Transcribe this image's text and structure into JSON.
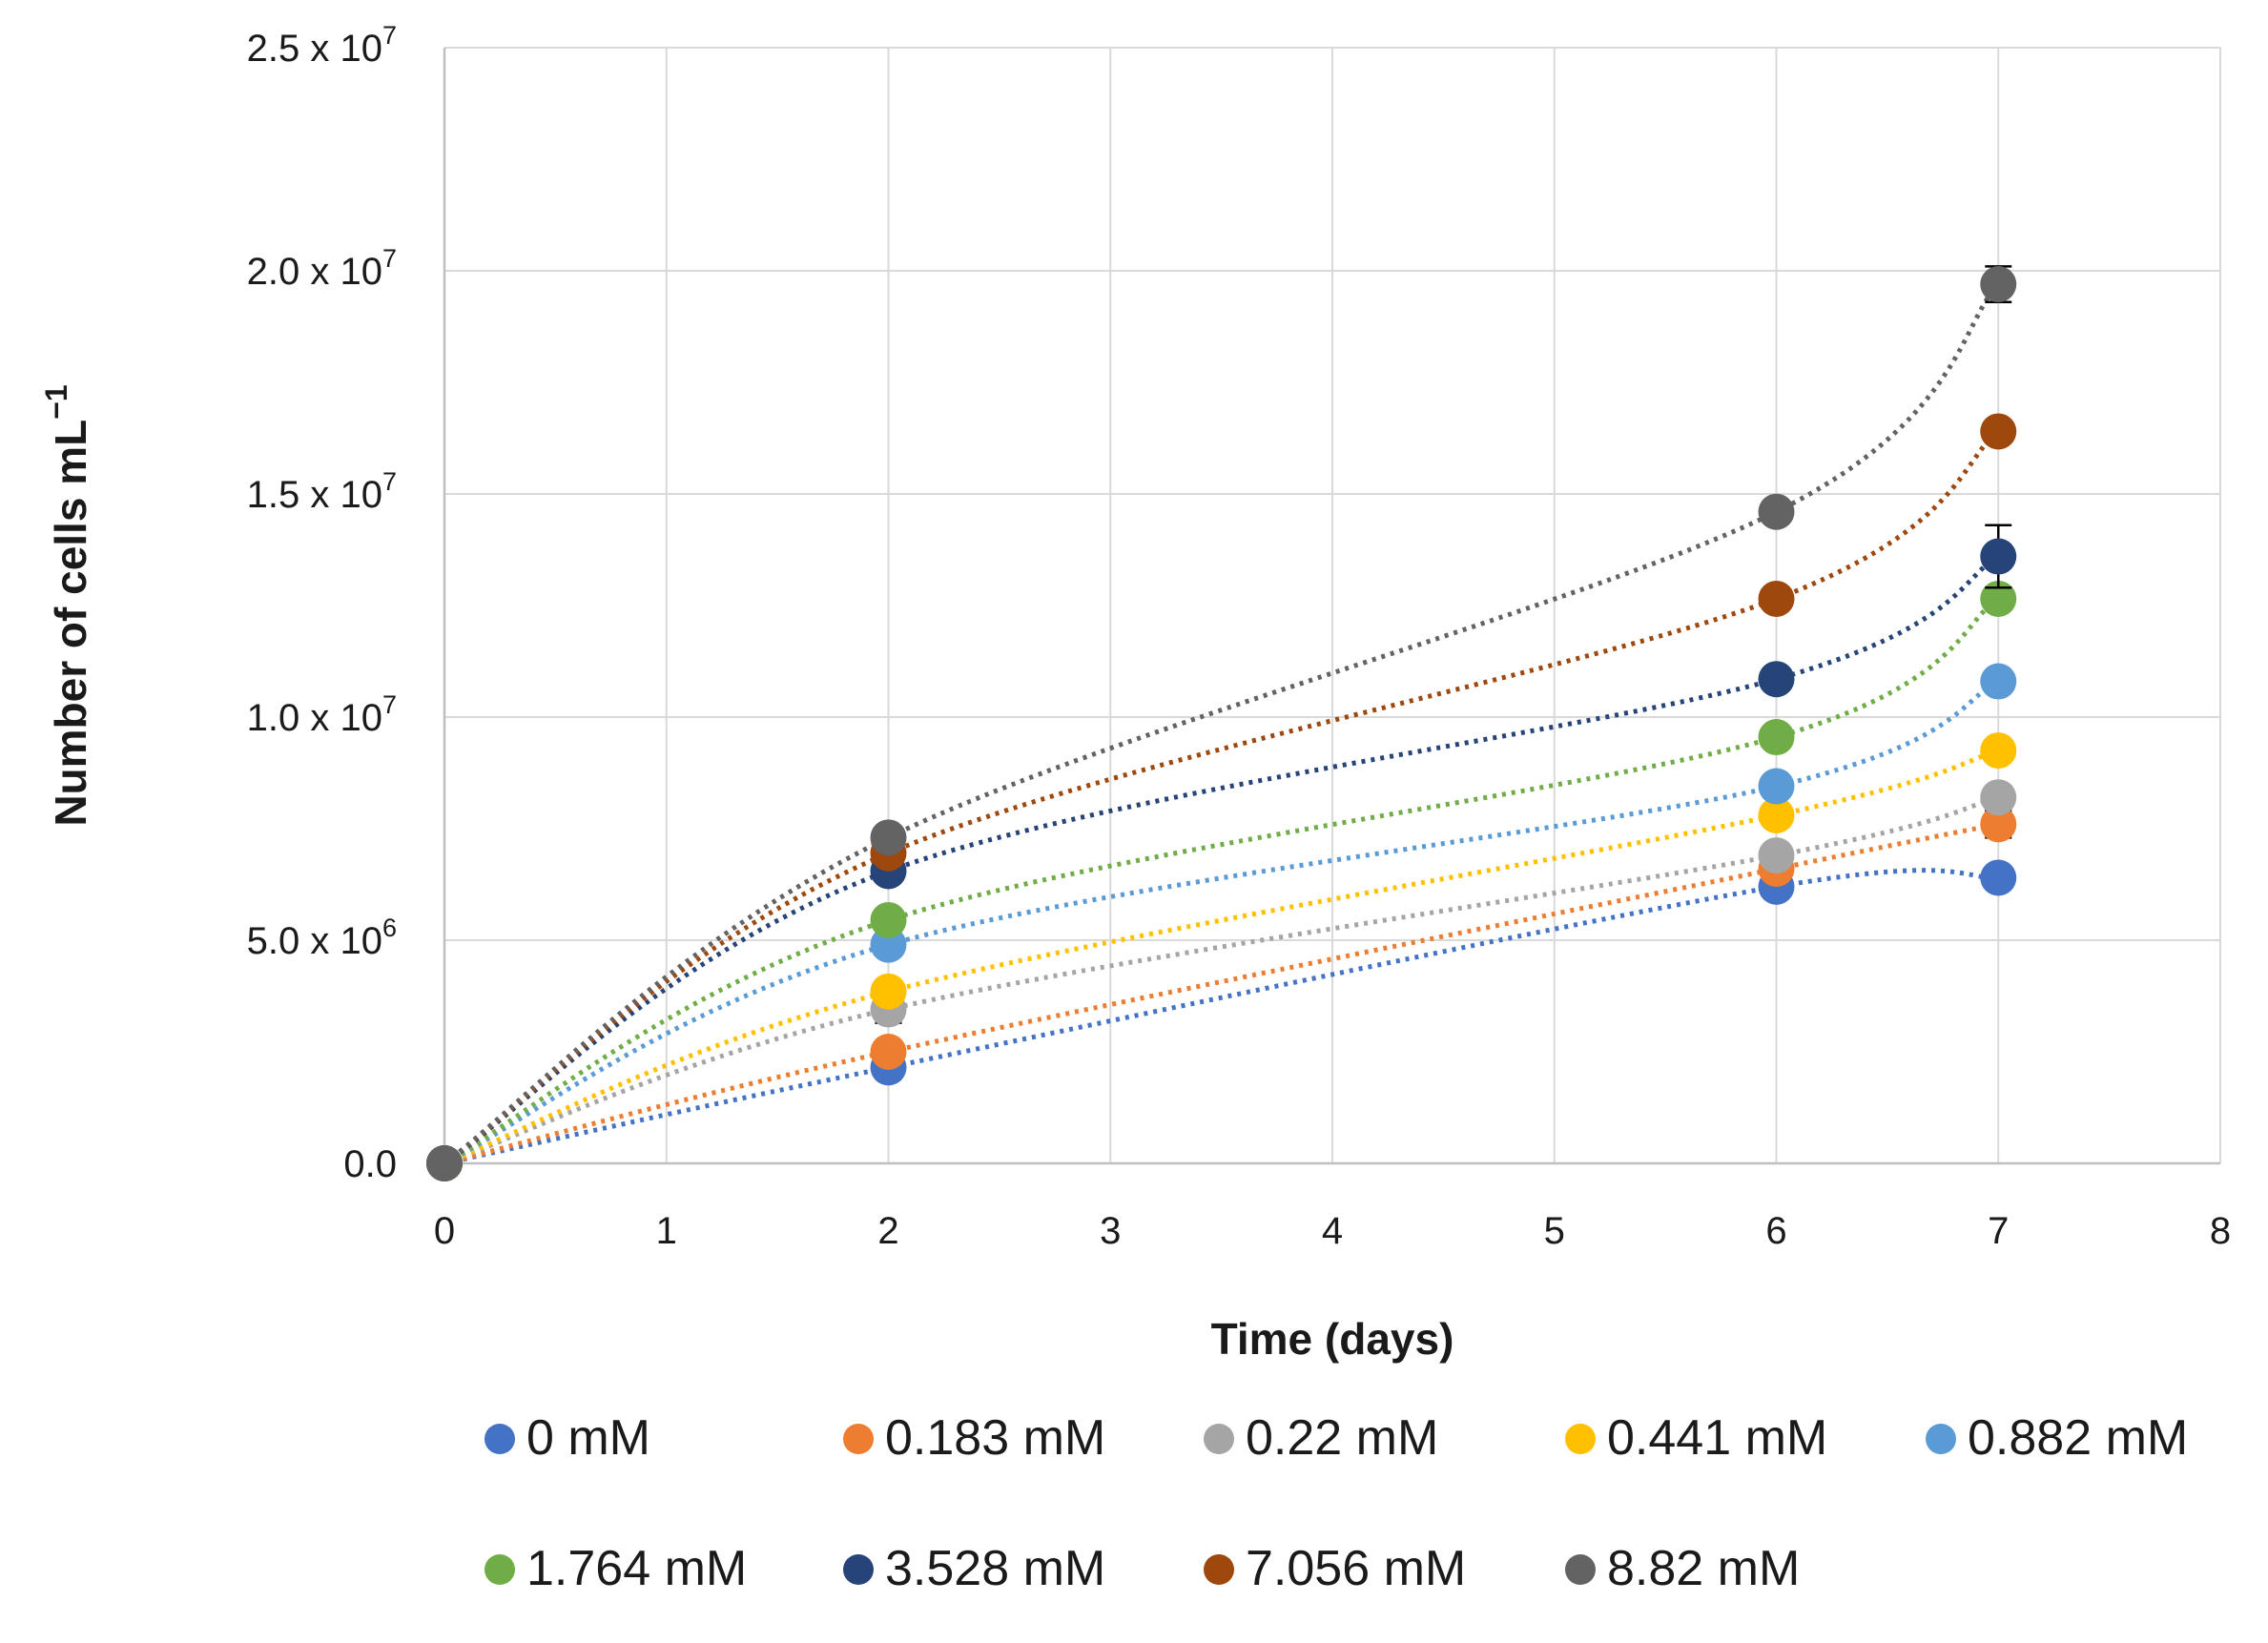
{
  "chart_data": {
    "type": "scatter",
    "title": "",
    "xlabel": "Time (days)",
    "ylabel": "Number of cells mL",
    "ylabel_sup": "−1",
    "xlim": [
      0,
      8
    ],
    "ylim": [
      0,
      25000000
    ],
    "grid": true,
    "legend_position": "bottom",
    "x_ticks": [
      0,
      1,
      2,
      3,
      4,
      5,
      6,
      7,
      8
    ],
    "x_tick_labels": [
      "0",
      "1",
      "2",
      "3",
      "4",
      "5",
      "6",
      "7",
      "8"
    ],
    "y_ticks": [
      0,
      5000000,
      10000000,
      15000000,
      20000000,
      25000000
    ],
    "y_tick_labels": [
      {
        "mant": "0.0",
        "exp": ""
      },
      {
        "mant": "5.0 x 10",
        "exp": "6"
      },
      {
        "mant": "1.0 x 10",
        "exp": "7"
      },
      {
        "mant": "1.5 x 10",
        "exp": "7"
      },
      {
        "mant": "2.0 x 10",
        "exp": "7"
      },
      {
        "mant": "2.5 x 10",
        "exp": "7"
      }
    ],
    "x": [
      0,
      2,
      6,
      7
    ],
    "series": [
      {
        "name": "0 mM",
        "color": "#4472c4",
        "values": [
          0,
          2150000,
          6200000,
          6400000
        ],
        "errors": [
          0,
          100000,
          150000,
          100000
        ]
      },
      {
        "name": "0.183 mM",
        "color": "#ed7d31",
        "values": [
          0,
          2500000,
          6600000,
          7600000
        ],
        "errors": [
          0,
          150000,
          150000,
          300000
        ]
      },
      {
        "name": "0.22 mM",
        "color": "#a5a5a5",
        "values": [
          0,
          3450000,
          6900000,
          8200000
        ],
        "errors": [
          0,
          300000,
          150000,
          250000
        ]
      },
      {
        "name": "0.441 mM",
        "color": "#ffc000",
        "values": [
          0,
          3850000,
          7800000,
          9250000
        ],
        "errors": [
          0,
          150000,
          150000,
          150000
        ]
      },
      {
        "name": "0.882 mM",
        "color": "#5b9bd5",
        "values": [
          0,
          4900000,
          8450000,
          10800000
        ],
        "errors": [
          0,
          200000,
          150000,
          150000
        ]
      },
      {
        "name": "1.764 mM",
        "color": "#70ad47",
        "values": [
          0,
          5450000,
          9550000,
          12650000
        ],
        "errors": [
          0,
          150000,
          150000,
          250000
        ]
      },
      {
        "name": "3.528 mM",
        "color": "#264478",
        "values": [
          0,
          6550000,
          10850000,
          13600000
        ],
        "errors": [
          0,
          150000,
          150000,
          700000
        ]
      },
      {
        "name": "7.056 mM",
        "color": "#9e480e",
        "values": [
          0,
          6950000,
          12650000,
          16400000
        ],
        "errors": [
          0,
          150000,
          150000,
          150000
        ]
      },
      {
        "name": "8.82 mM",
        "color": "#636363",
        "values": [
          0,
          7300000,
          14600000,
          19700000
        ],
        "errors": [
          0,
          150000,
          200000,
          400000
        ]
      }
    ]
  }
}
